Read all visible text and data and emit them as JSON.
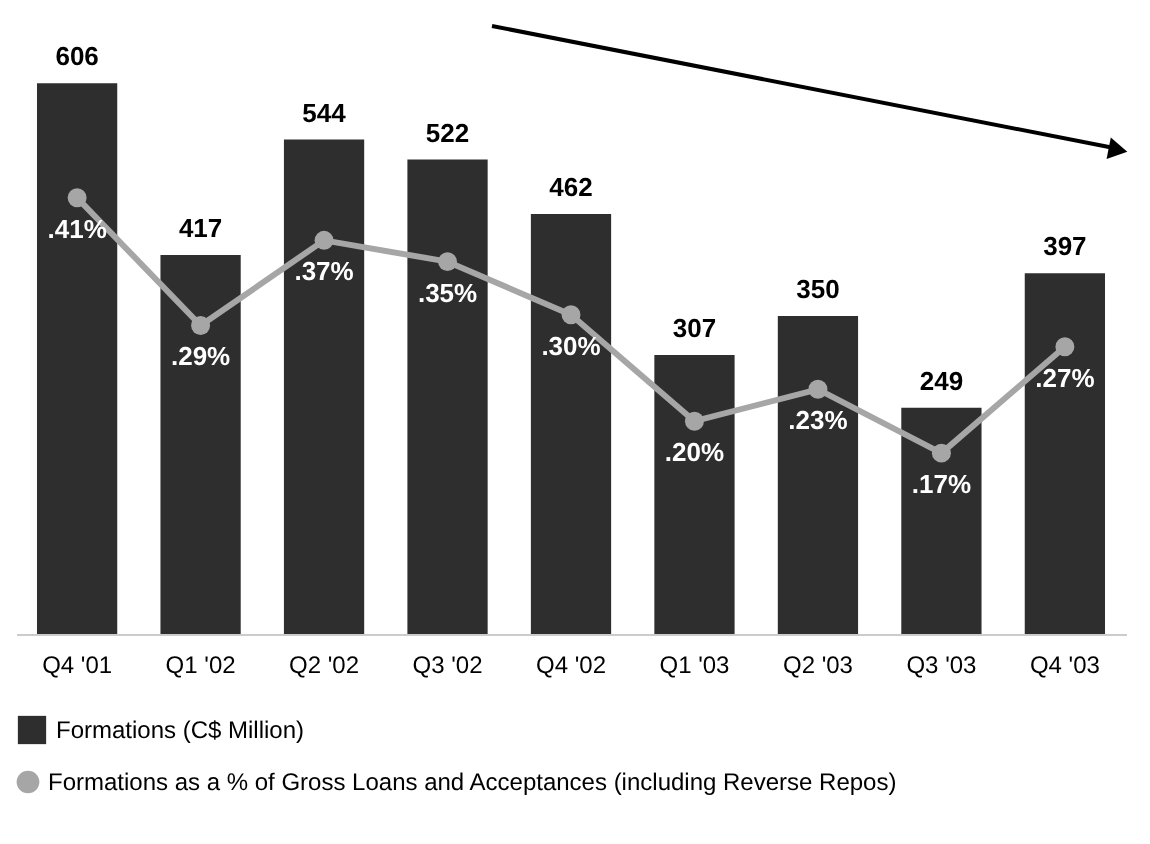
{
  "chart_data": {
    "type": "bar",
    "categories": [
      "Q4 '01",
      "Q1 '02",
      "Q2 '02",
      "Q3 '02",
      "Q4 '02",
      "Q1 '03",
      "Q2 '03",
      "Q3 '03",
      "Q4 '03"
    ],
    "series": [
      {
        "name": "Formations (C$ Million)",
        "color": "#2e2e2e",
        "values": [
          606,
          417,
          544,
          522,
          462,
          307,
          350,
          249,
          397
        ]
      },
      {
        "name": "Formations as a % of Gross Loans and Acceptances (including Reverse Repos)",
        "type": "line",
        "axis": "y2",
        "color": "#a6a6a6",
        "values": [
          0.41,
          0.29,
          0.37,
          0.35,
          0.3,
          0.2,
          0.23,
          0.17,
          0.27
        ],
        "value_labels": [
          ".41%",
          ".29%",
          ".37%",
          ".35%",
          ".30%",
          ".20%",
          ".23%",
          ".17%",
          ".27%"
        ]
      }
    ],
    "data_labels": true,
    "tick_labels": "x",
    "grid": false,
    "legend": "bottom",
    "marker": "circle"
  }
}
